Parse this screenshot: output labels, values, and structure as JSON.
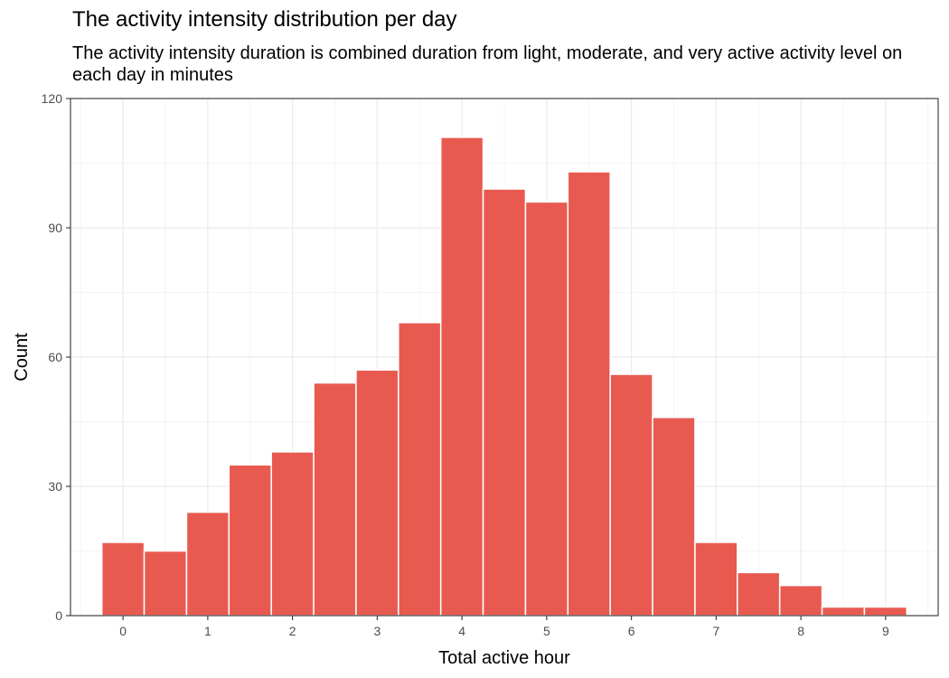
{
  "chart_data": {
    "type": "bar",
    "title": "The activity intensity distribution per day",
    "subtitle": "The activity intensity duration is combined duration from light, moderate, and very active activity level on each day in minutes",
    "xlabel": "Total active hour",
    "ylabel": "Count",
    "bin_centers": [
      0,
      0.5,
      1,
      1.5,
      2,
      2.5,
      3,
      3.5,
      4,
      4.5,
      5,
      5.5,
      6,
      6.5,
      7,
      7.5,
      8,
      8.5,
      9
    ],
    "values": [
      17,
      15,
      24,
      35,
      38,
      54,
      57,
      68,
      111,
      99,
      96,
      103,
      56,
      46,
      17,
      10,
      7,
      2,
      2
    ],
    "bin_width": 0.5,
    "xlim": [
      -0.62,
      9.62
    ],
    "ylim": [
      0,
      120
    ],
    "x_ticks": [
      "0",
      "1",
      "2",
      "3",
      "4",
      "5",
      "6",
      "7",
      "8",
      "9"
    ],
    "y_ticks": [
      "0",
      "30",
      "60",
      "90",
      "120"
    ],
    "bar_color": "#E85A50",
    "grid": true
  }
}
